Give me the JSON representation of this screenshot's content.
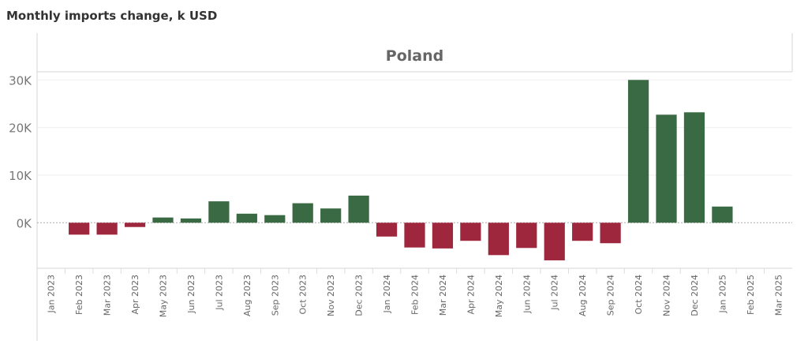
{
  "title": "Monthly imports change, k USD",
  "chart_data": {
    "type": "bar",
    "panel_title": "Poland",
    "categories": [
      "Jan 2023",
      "Feb 2023",
      "Mar 2023",
      "Apr 2023",
      "May 2023",
      "Jun 2023",
      "Jul 2023",
      "Aug 2023",
      "Sep 2023",
      "Oct 2023",
      "Nov 2023",
      "Dec 2023",
      "Jan 2024",
      "Feb 2024",
      "Mar 2024",
      "Apr 2024",
      "May 2024",
      "Jun 2024",
      "Jul 2024",
      "Aug 2024",
      "Sep 2024",
      "Oct 2024",
      "Nov 2024",
      "Dec 2024",
      "Jan 2025",
      "Feb 2025",
      "Mar 2025"
    ],
    "values": [
      null,
      -2.5,
      -2.5,
      -0.9,
      1.1,
      0.9,
      4.5,
      1.9,
      1.6,
      4.1,
      3.0,
      5.7,
      -2.9,
      -5.2,
      -5.4,
      -3.8,
      -6.8,
      -5.3,
      -7.9,
      -3.8,
      -4.3,
      30.0,
      22.7,
      23.2,
      3.4,
      null,
      null
    ],
    "units": "K",
    "ylim": [
      -9.5,
      31.5
    ],
    "yticks": [
      0,
      10,
      20,
      30
    ],
    "ytick_labels": [
      "0K",
      "10K",
      "20K",
      "30K"
    ],
    "xlabel": "",
    "ylabel": "",
    "grid": true,
    "colors": {
      "positive": "#3a6a44",
      "negative": "#9e273e"
    }
  }
}
